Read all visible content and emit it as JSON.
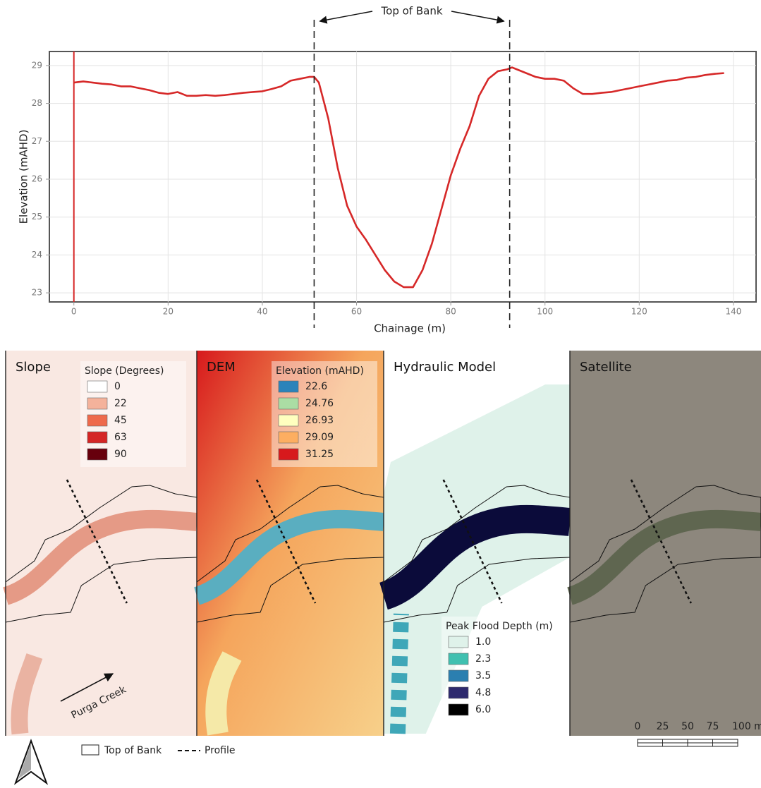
{
  "chart_data": {
    "type": "line",
    "annotation": "Top of Bank",
    "x_label": "Chainage (m)",
    "y_label": "Elevation (mAHD)",
    "color": "#d62828",
    "x": [
      0,
      2,
      4,
      6,
      8,
      10,
      12,
      14,
      16,
      18,
      20,
      22,
      24,
      26,
      28,
      30,
      32,
      34,
      36,
      38,
      40,
      42,
      44,
      46,
      48,
      50,
      51,
      52,
      54,
      56,
      58,
      60,
      62,
      64,
      66,
      68,
      70,
      72,
      74,
      76,
      78,
      80,
      82,
      84,
      86,
      88,
      90,
      92,
      93,
      94,
      96,
      98,
      100,
      102,
      104,
      106,
      108,
      110,
      112,
      114,
      116,
      118,
      120,
      122,
      124,
      126,
      128,
      130,
      132,
      134,
      136,
      138
    ],
    "values": [
      28.55,
      28.58,
      28.55,
      28.52,
      28.5,
      28.45,
      28.45,
      28.4,
      28.35,
      28.28,
      28.25,
      28.3,
      28.2,
      28.2,
      28.22,
      28.2,
      28.22,
      28.25,
      28.28,
      28.3,
      28.32,
      28.38,
      28.45,
      28.6,
      28.65,
      28.7,
      28.7,
      28.55,
      27.6,
      26.3,
      25.3,
      24.75,
      24.4,
      24.0,
      23.6,
      23.3,
      23.15,
      23.15,
      23.6,
      24.3,
      25.2,
      26.1,
      26.8,
      27.4,
      28.2,
      28.65,
      28.85,
      28.9,
      28.95,
      28.9,
      28.8,
      28.7,
      28.65,
      28.65,
      28.6,
      28.4,
      28.25,
      28.25,
      28.28,
      28.3,
      28.35,
      28.4,
      28.45,
      28.5,
      28.55,
      28.6,
      28.62,
      28.68,
      28.7,
      28.75,
      28.78,
      28.8
    ],
    "bank_markers": [
      51,
      92.5
    ],
    "xlim": [
      -5.2,
      144.8
    ],
    "ylim": [
      22.76,
      29.37
    ],
    "xticks": [
      0,
      20,
      40,
      60,
      80,
      100,
      120,
      140
    ],
    "yticks": [
      23,
      24,
      25,
      26,
      27,
      28,
      29
    ],
    "grid": true
  },
  "panels": [
    {
      "title": "Slope",
      "legend_title": "Slope (Degrees)",
      "background": "#f9e8e2",
      "creek": "#e59a86",
      "legend": [
        {
          "label": "0",
          "color": "#ffffff"
        },
        {
          "label": "22",
          "color": "#f4b29b"
        },
        {
          "label": "45",
          "color": "#ee6a4c"
        },
        {
          "label": "63",
          "color": "#d42626"
        },
        {
          "label": "90",
          "color": "#67000d"
        }
      ]
    },
    {
      "title": "DEM",
      "legend_title": "Elevation (mAHD)",
      "background": "#f2a25a",
      "creek": "#5aaec0",
      "legend": [
        {
          "label": "22.6",
          "color": "#2b83ba"
        },
        {
          "label": "24.76",
          "color": "#abdda4"
        },
        {
          "label": "26.93",
          "color": "#ffffbf"
        },
        {
          "label": "29.09",
          "color": "#fdae61"
        },
        {
          "label": "31.25",
          "color": "#d7191c"
        }
      ]
    },
    {
      "title": "Hydraulic Model",
      "legend_title": "Peak Flood Depth (m)",
      "background": "#ffffff",
      "creek": "#0b0b3a",
      "legend": [
        {
          "label": "1.0",
          "color": "#dff2ea"
        },
        {
          "label": "2.3",
          "color": "#40c0b0"
        },
        {
          "label": "3.5",
          "color": "#2b7fb0"
        },
        {
          "label": "4.8",
          "color": "#2e2a6e"
        },
        {
          "label": "6.0",
          "color": "#000000"
        }
      ]
    },
    {
      "title": "Satellite",
      "background": "#8d877d",
      "creek": "#5f6650"
    }
  ],
  "creek_label": "Purga Creek",
  "map_legend": {
    "outline": "Top of Bank",
    "profile": "Profile"
  },
  "scale_bar": [
    "0",
    "25",
    "50",
    "75",
    "100 m"
  ]
}
